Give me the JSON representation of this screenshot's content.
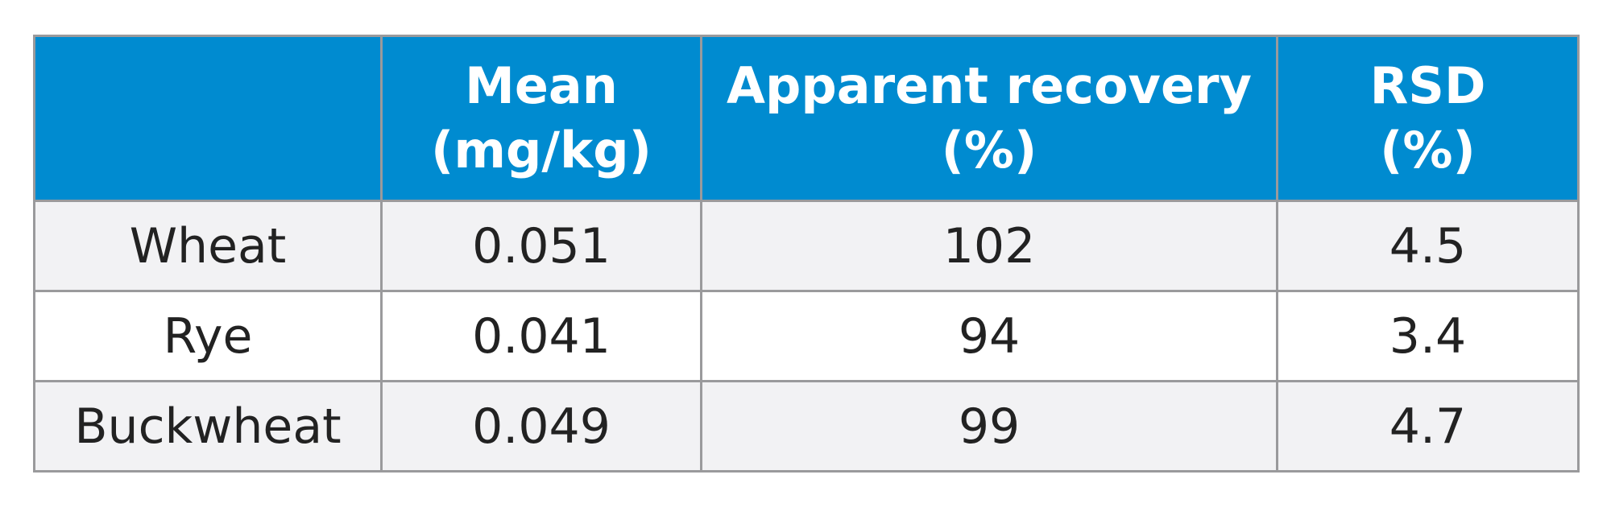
{
  "table": {
    "header": [
      {
        "lines": [
          "Mean",
          "(mg/kg)"
        ]
      },
      {
        "lines": [
          "Apparent recovery",
          "(%)"
        ]
      },
      {
        "lines": [
          "RSD",
          "(%)"
        ]
      }
    ],
    "rows": [
      [
        "Wheat",
        "0.051",
        "102",
        "4.5"
      ],
      [
        "Rye",
        "0.041",
        "94",
        "3.4"
      ],
      [
        "Buckwheat",
        "0.049",
        "99",
        "4.7"
      ]
    ]
  }
}
